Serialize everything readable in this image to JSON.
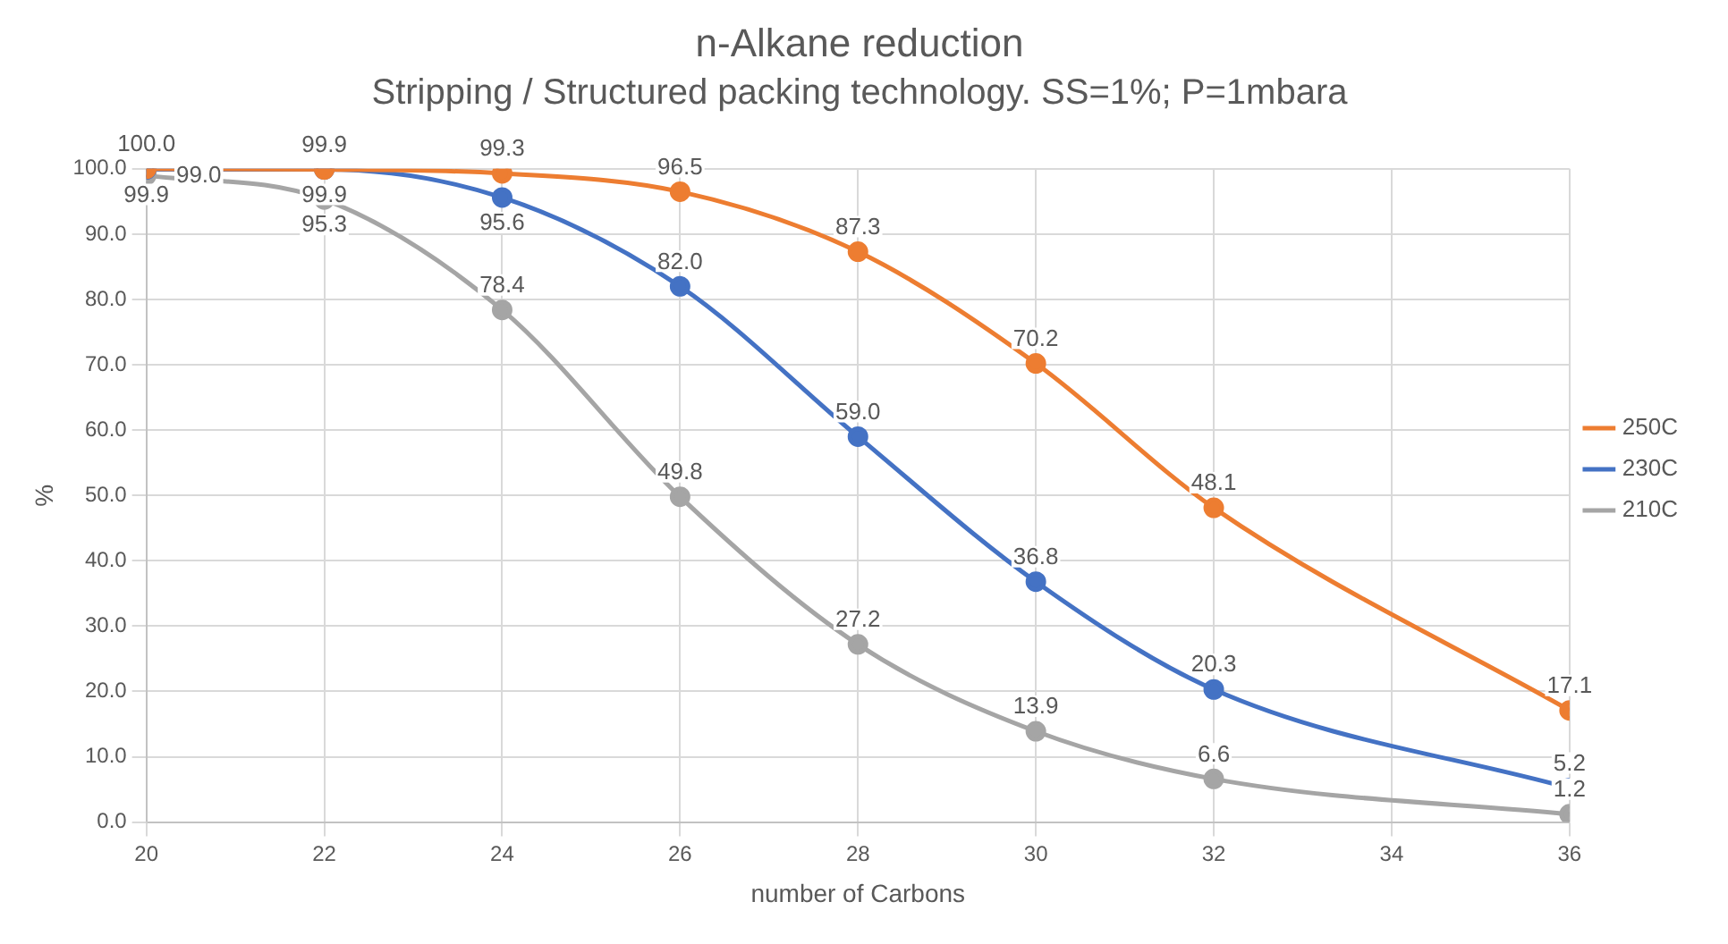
{
  "chart_data": {
    "type": "line",
    "title": "n-Alkane reduction",
    "subtitle": "Stripping / Structured packing technology. SS=1%; P=1mbara",
    "xlabel": "number of Carbons",
    "ylabel": "%",
    "x": [
      20,
      22,
      24,
      26,
      28,
      30,
      32,
      36
    ],
    "series": [
      {
        "name": "250C",
        "color": "#ed7d31",
        "values": [
          100.0,
          99.9,
          99.3,
          96.5,
          87.3,
          70.2,
          48.1,
          17.1
        ],
        "value_labels": [
          "100.0",
          "99.9",
          "99.3",
          "96.5",
          "87.3",
          "70.2",
          "48.1",
          "17.1"
        ]
      },
      {
        "name": "230C",
        "color": "#4472c4",
        "values": [
          99.9,
          99.9,
          95.6,
          82.0,
          59.0,
          36.8,
          20.3,
          5.2
        ],
        "value_labels": [
          "99.9",
          "99.9",
          "95.6",
          "82.0",
          "59.0",
          "36.8",
          "20.3",
          "5.2"
        ]
      },
      {
        "name": "210C",
        "color": "#a5a5a5",
        "values": [
          99.0,
          95.3,
          78.4,
          49.8,
          27.2,
          13.9,
          6.6,
          1.2
        ],
        "value_labels": [
          "99.0",
          "95.3",
          "78.4",
          "49.8",
          "27.2",
          "13.9",
          "6.6",
          "1.2"
        ]
      }
    ],
    "xlim": [
      20,
      36
    ],
    "xticks": [
      20,
      22,
      24,
      26,
      28,
      30,
      32,
      34,
      36
    ],
    "ylim": [
      0,
      100
    ],
    "yticks": [
      {
        "value": 0,
        "label": "0.0"
      },
      {
        "value": 10,
        "label": "10.0"
      },
      {
        "value": 20,
        "label": "20.0"
      },
      {
        "value": 30,
        "label": "30.0"
      },
      {
        "value": 40,
        "label": "40.0"
      },
      {
        "value": 50,
        "label": "50.0"
      },
      {
        "value": 60,
        "label": "60.0"
      },
      {
        "value": 70,
        "label": "70.0"
      },
      {
        "value": 80,
        "label": "80.0"
      },
      {
        "value": 90,
        "label": "90.0"
      },
      {
        "value": 100,
        "label": "100.0"
      }
    ],
    "grid": true,
    "legend": "right",
    "marker": "circle",
    "line_style": "solid"
  }
}
